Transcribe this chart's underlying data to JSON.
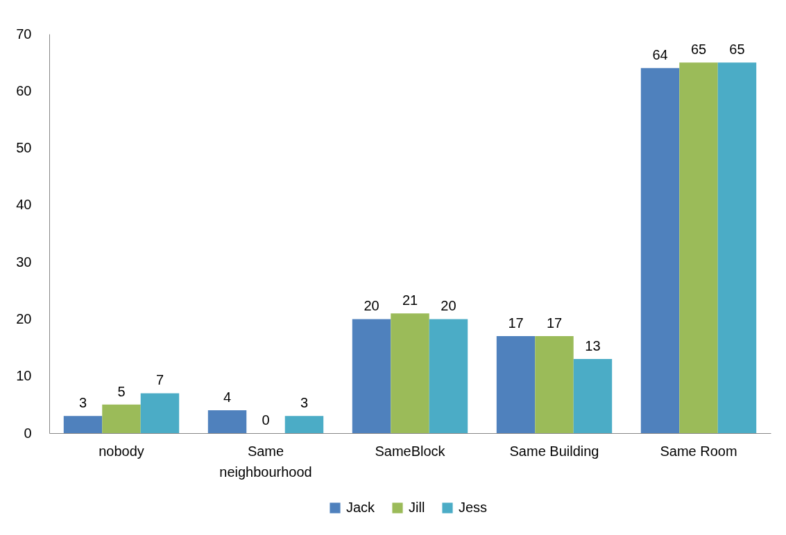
{
  "chart_data": {
    "type": "bar",
    "categories": [
      "nobody",
      "Same neighbourhood",
      "SameBlock",
      "Same Building",
      "Same Room"
    ],
    "series": [
      {
        "name": "Jack",
        "color": "#4f81bd",
        "values": [
          3,
          4,
          20,
          17,
          64
        ]
      },
      {
        "name": "Jill",
        "color": "#9bbb59",
        "values": [
          5,
          0,
          21,
          17,
          65
        ]
      },
      {
        "name": "Jess",
        "color": "#4bacc6",
        "values": [
          7,
          3,
          20,
          13,
          65
        ]
      }
    ],
    "ylim": [
      0,
      70
    ],
    "yticks": [
      0,
      10,
      20,
      30,
      40,
      50,
      60,
      70
    ],
    "data_labels": true,
    "legend": "bottom"
  }
}
